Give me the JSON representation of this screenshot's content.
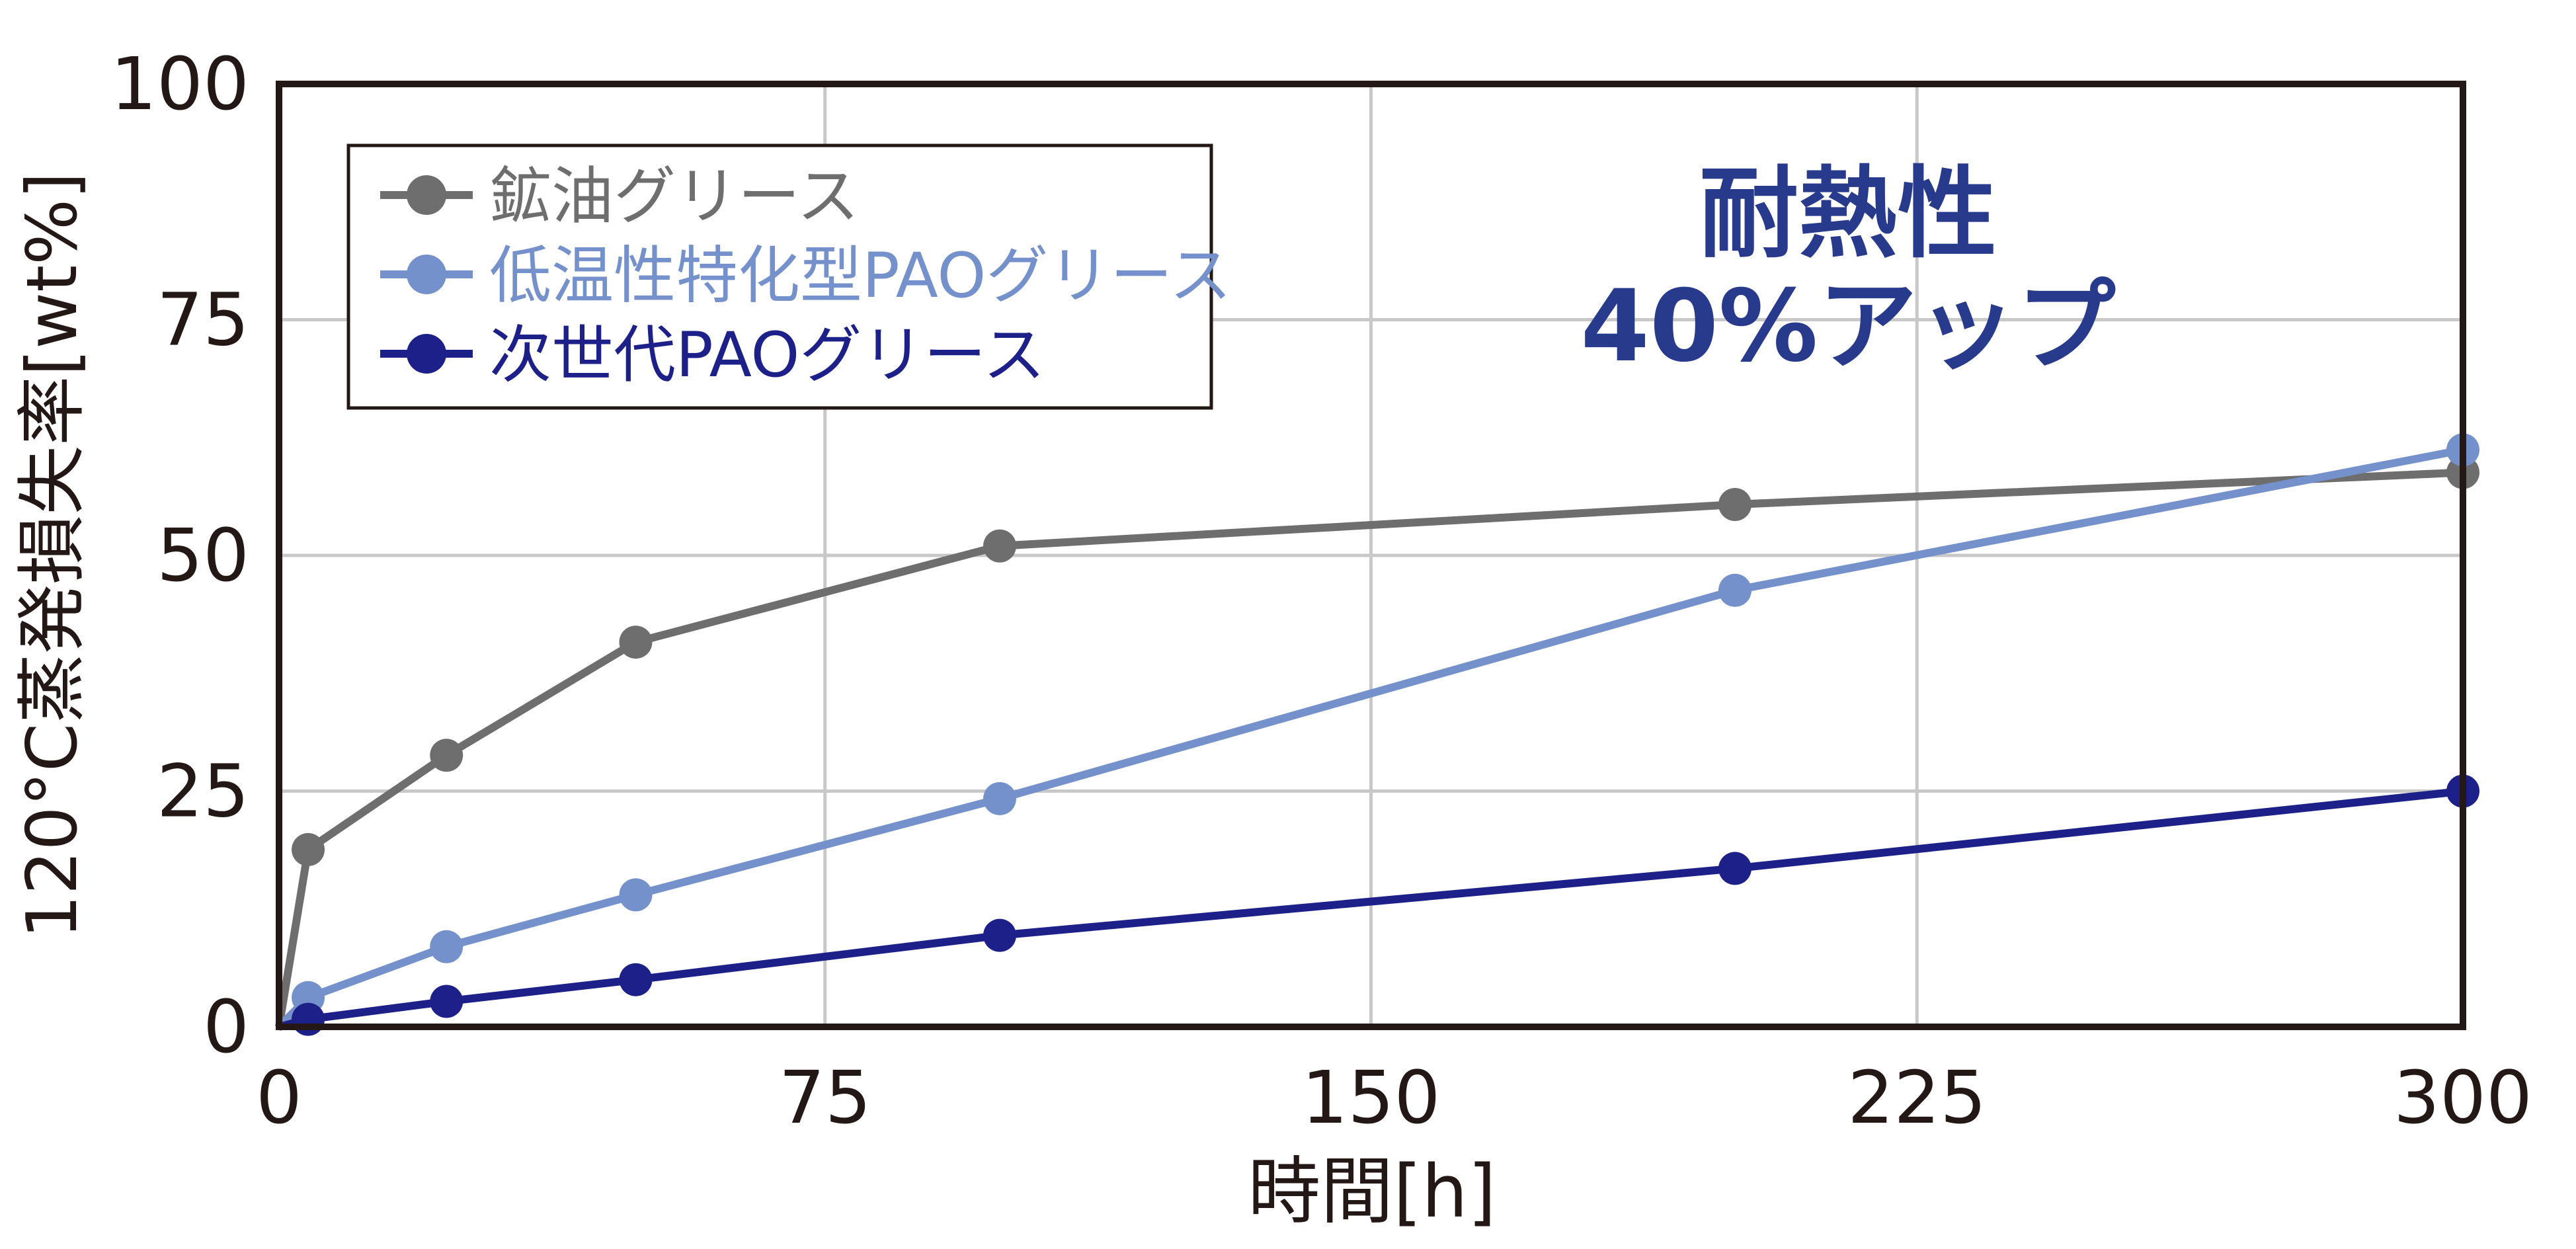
{
  "chart_data": {
    "type": "line",
    "xlabel": "時間[h]",
    "ylabel": "120°C蒸発損失率[wt%]",
    "xlim": [
      0,
      300
    ],
    "ylim": [
      0,
      100
    ],
    "x_ticks": [
      "0",
      "75",
      "150",
      "225",
      "300"
    ],
    "y_ticks": [
      "0",
      "25",
      "50",
      "75",
      "100"
    ],
    "grid": true,
    "legend_position": "top-left",
    "annotation": [
      "耐熱性",
      "40%アップ"
    ],
    "series": [
      {
        "name": "鉱油グリース",
        "color": "#6e6e6e",
        "points": [
          [
            0,
            0
          ],
          [
            4,
            18.8
          ],
          [
            23,
            28.8
          ],
          [
            49,
            40.8
          ],
          [
            99,
            51.0
          ],
          [
            200,
            55.4
          ],
          [
            300,
            58.8
          ]
        ]
      },
      {
        "name": "低温性特化型PAOグリース",
        "color": "#7591cc",
        "points": [
          [
            0,
            0
          ],
          [
            4,
            3.1
          ],
          [
            23,
            8.5
          ],
          [
            49,
            14.0
          ],
          [
            99,
            24.2
          ],
          [
            200,
            46.3
          ],
          [
            300,
            61.2
          ]
        ]
      },
      {
        "name": "次世代PAOグリース",
        "color": "#1d2088",
        "points": [
          [
            0,
            0
          ],
          [
            4,
            0.8
          ],
          [
            23,
            2.7
          ],
          [
            49,
            5.0
          ],
          [
            99,
            9.7
          ],
          [
            200,
            16.8
          ],
          [
            300,
            25.0
          ]
        ]
      }
    ]
  }
}
